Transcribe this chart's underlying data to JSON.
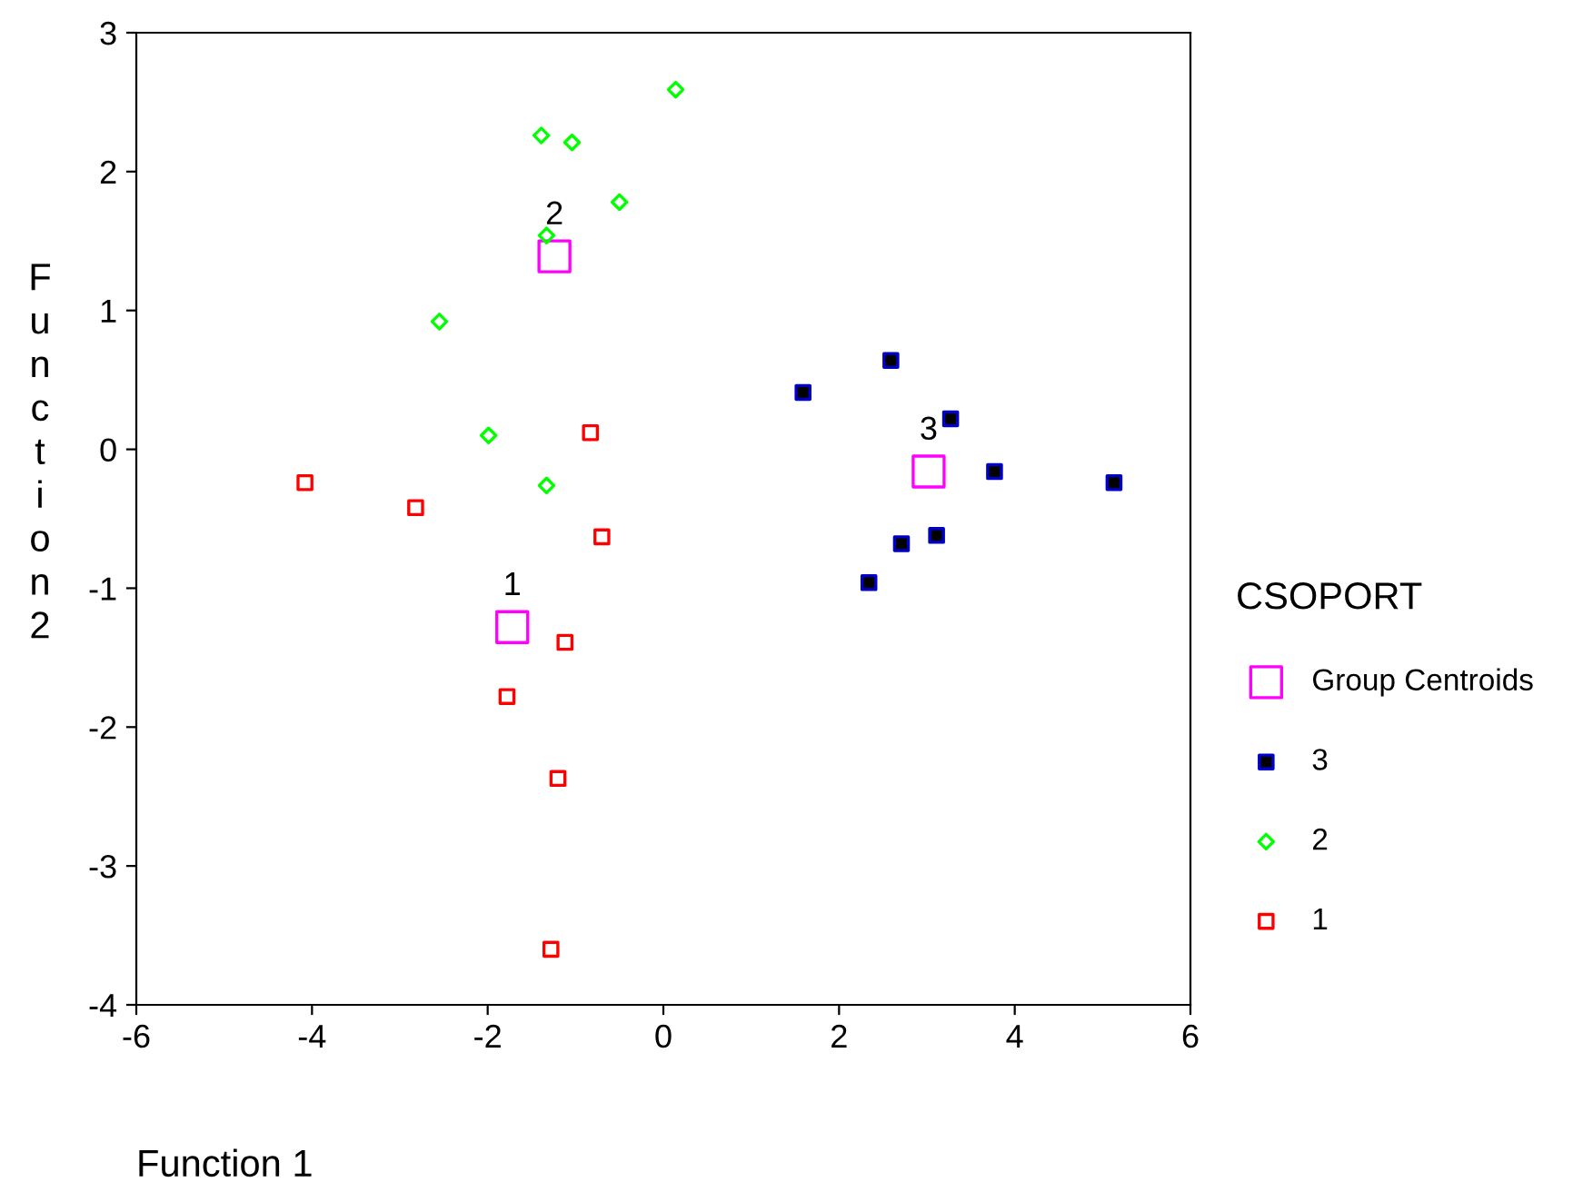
{
  "chart_data": {
    "type": "scatter",
    "xlabel": "Function 1",
    "ylabel": "Function 2",
    "legend_title": "CSOPORT",
    "legend": "right",
    "grid": false,
    "xlim": [
      -6,
      6
    ],
    "xticks": [
      -6,
      -4,
      -2,
      0,
      2,
      4,
      6
    ],
    "ylim": [
      -4,
      3
    ],
    "yticks": [
      -4,
      -3,
      -2,
      -1,
      0,
      1,
      2,
      3
    ],
    "series": [
      {
        "name": "Group Centroids",
        "color": "#ff00ff",
        "marker": "square",
        "x": [
          -1.72,
          -1.24,
          3.02
        ],
        "values": [
          -1.28,
          1.39,
          -0.16
        ]
      },
      {
        "name": "3",
        "color": "#0000cc",
        "marker": "square",
        "x": [
          1.59,
          2.59,
          3.27,
          3.77,
          5.13,
          3.11,
          2.71,
          2.34
        ],
        "values": [
          0.41,
          0.64,
          0.22,
          -0.16,
          -0.24,
          -0.62,
          -0.68,
          -0.96
        ]
      },
      {
        "name": "2",
        "color": "#00ff00",
        "marker": "diamond",
        "x": [
          0.14,
          -1.39,
          -1.04,
          -0.5,
          -1.33,
          -2.55,
          -1.99,
          -1.33
        ],
        "values": [
          2.59,
          2.26,
          2.21,
          1.78,
          1.54,
          0.92,
          0.1,
          -0.26
        ]
      },
      {
        "name": "1",
        "color": "#ff0000",
        "marker": "square",
        "x": [
          -4.08,
          -2.82,
          -0.83,
          -0.7,
          -1.12,
          -1.78,
          -1.2,
          -1.28
        ],
        "values": [
          -0.24,
          -0.42,
          0.12,
          -0.63,
          -1.39,
          -1.78,
          -2.37,
          -3.6
        ]
      }
    ],
    "annotations": [
      {
        "text": "1",
        "x": -1.72,
        "y": -1.28
      },
      {
        "text": "2",
        "x": -1.24,
        "y": 1.39
      },
      {
        "text": "3",
        "x": 3.02,
        "y": -0.16
      }
    ]
  }
}
